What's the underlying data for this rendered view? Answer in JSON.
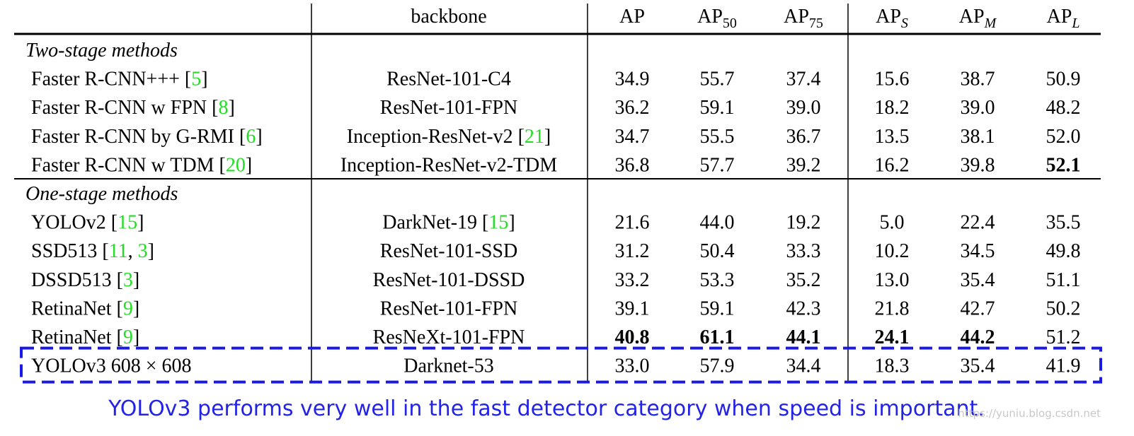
{
  "table": {
    "columns": [
      {
        "text": "backbone"
      },
      {
        "text": "AP"
      },
      {
        "text": "AP",
        "sub": "50"
      },
      {
        "text": "AP",
        "sub": "75"
      },
      {
        "text": "AP",
        "sub": "S",
        "sub_italic": true
      },
      {
        "text": "AP",
        "sub": "M",
        "sub_italic": true
      },
      {
        "text": "AP",
        "sub": "L",
        "sub_italic": true
      }
    ],
    "groups": [
      {
        "title": "Two-stage methods",
        "rows": [
          {
            "method": [
              "Faster R-CNN+++ [",
              "5",
              "]"
            ],
            "backbone": [
              "ResNet-101-C4"
            ],
            "scores": [
              "34.9",
              "55.7",
              "37.4",
              "15.6",
              "38.7",
              "50.9"
            ],
            "bold": []
          },
          {
            "method": [
              "Faster R-CNN w FPN [",
              "8",
              "]"
            ],
            "backbone": [
              "ResNet-101-FPN"
            ],
            "scores": [
              "36.2",
              "59.1",
              "39.0",
              "18.2",
              "39.0",
              "48.2"
            ],
            "bold": []
          },
          {
            "method": [
              "Faster R-CNN by G-RMI [",
              "6",
              "]"
            ],
            "backbone": [
              "Inception-ResNet-v2 [",
              "21",
              "]"
            ],
            "scores": [
              "34.7",
              "55.5",
              "36.7",
              "13.5",
              "38.1",
              "52.0"
            ],
            "bold": []
          },
          {
            "method": [
              "Faster R-CNN w TDM [",
              "20",
              "]"
            ],
            "backbone": [
              "Inception-ResNet-v2-TDM"
            ],
            "scores": [
              "36.8",
              "57.7",
              "39.2",
              "16.2",
              "39.8",
              "52.1"
            ],
            "bold": [
              5
            ]
          }
        ]
      },
      {
        "title": "One-stage methods",
        "rows": [
          {
            "method": [
              "YOLOv2 [",
              "15",
              "]"
            ],
            "backbone": [
              "DarkNet-19 [",
              "15",
              "]"
            ],
            "scores": [
              "21.6",
              "44.0",
              "19.2",
              "5.0",
              "22.4",
              "35.5"
            ],
            "bold": []
          },
          {
            "method": [
              "SSD513 [",
              "11",
              ", ",
              "3",
              "]"
            ],
            "backbone": [
              "ResNet-101-SSD"
            ],
            "scores": [
              "31.2",
              "50.4",
              "33.3",
              "10.2",
              "34.5",
              "49.8"
            ],
            "bold": []
          },
          {
            "method": [
              "DSSD513 [",
              "3",
              "]"
            ],
            "backbone": [
              "ResNet-101-DSSD"
            ],
            "scores": [
              "33.2",
              "53.3",
              "35.2",
              "13.0",
              "35.4",
              "51.1"
            ],
            "bold": []
          },
          {
            "method": [
              "RetinaNet [",
              "9",
              "]"
            ],
            "backbone": [
              "ResNet-101-FPN"
            ],
            "scores": [
              "39.1",
              "59.1",
              "42.3",
              "21.8",
              "42.7",
              "50.2"
            ],
            "bold": []
          },
          {
            "method": [
              "RetinaNet [",
              "9",
              "]"
            ],
            "backbone": [
              "ResNeXt-101-FPN"
            ],
            "scores": [
              "40.8",
              "61.1",
              "44.1",
              "24.1",
              "44.2",
              "51.2"
            ],
            "bold": [
              0,
              1,
              2,
              3,
              4
            ]
          },
          {
            "method": [
              "YOLOv3 608 × 608"
            ],
            "backbone": [
              "Darknet-53"
            ],
            "scores": [
              "33.0",
              "57.9",
              "34.4",
              "18.3",
              "35.4",
              "41.9"
            ],
            "bold": [],
            "highlight": true
          }
        ]
      }
    ]
  },
  "caption": "YOLOv3 performs very well in the fast detector category when speed is important.",
  "watermark": "https://yuniu.blog.csdn.net"
}
